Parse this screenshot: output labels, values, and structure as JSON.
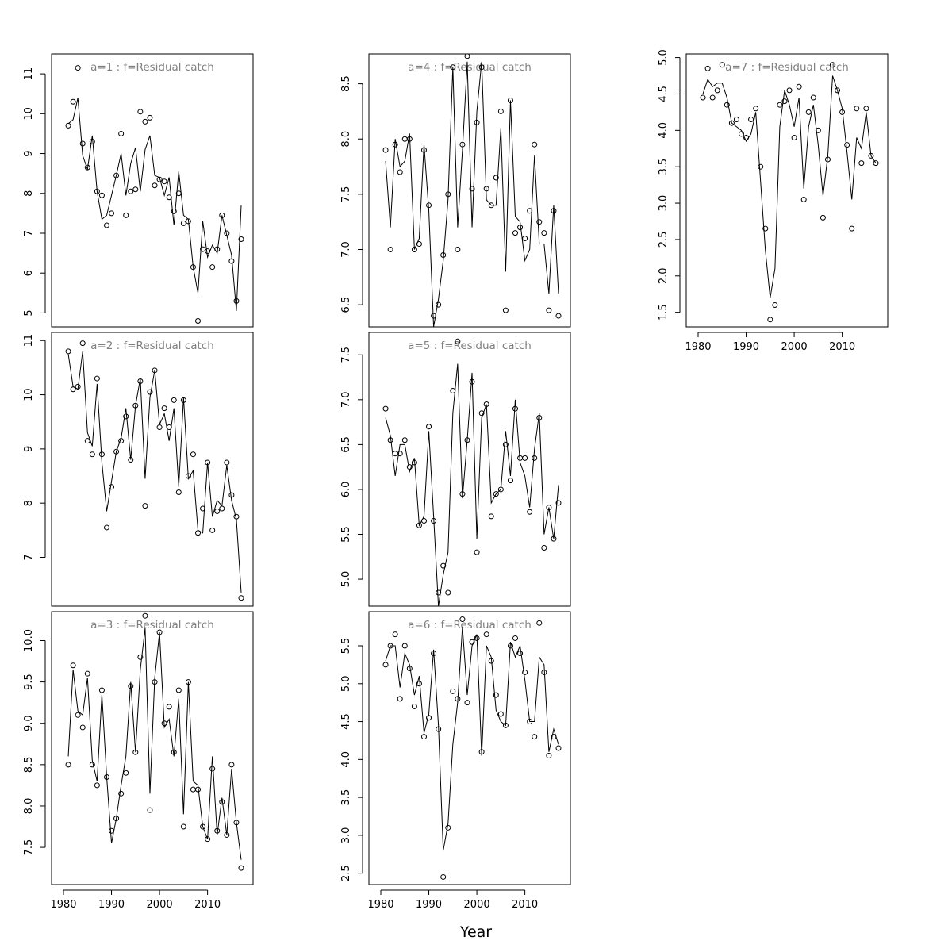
{
  "figure": {
    "xlabel": "Year"
  },
  "chart_data": [
    {
      "type": "scatter",
      "title": "a=1  :  f=Residual catch",
      "xlim": [
        1980,
        2017
      ],
      "ylim": [
        4.65,
        11.5
      ],
      "xticks": [
        1980,
        1990,
        2000,
        2010
      ],
      "yticks": [
        5,
        6,
        7,
        8,
        9,
        10,
        11
      ],
      "yticklabels": [
        "5",
        "6",
        "7",
        "8",
        "9",
        "10",
        "11"
      ],
      "show_xaxis": false,
      "series": [
        {
          "x": [
            1981,
            1982,
            1983,
            1984,
            1985,
            1986,
            1987,
            1988,
            1989,
            1990,
            1991,
            1992,
            1993,
            1994,
            1995,
            1996,
            1997,
            1998,
            1999,
            2000,
            2001,
            2002,
            2003,
            2004,
            2005,
            2006,
            2007,
            2008,
            2009,
            2010,
            2011,
            2012,
            2013,
            2014,
            2015,
            2016,
            2017
          ],
          "observed": [
            9.7,
            10.3,
            11.15,
            9.25,
            8.65,
            9.3,
            8.05,
            7.95,
            7.2,
            7.5,
            8.45,
            9.5,
            7.45,
            8.05,
            8.1,
            10.05,
            9.8,
            9.9,
            8.2,
            8.35,
            8.3,
            7.9,
            7.55,
            8.0,
            7.25,
            7.3,
            6.15,
            4.8,
            6.6,
            6.55,
            6.15,
            6.6,
            7.45,
            7.0,
            6.3,
            5.3,
            6.85
          ],
          "fitted": [
            9.75,
            9.85,
            10.4,
            8.95,
            8.6,
            9.45,
            8.05,
            7.35,
            7.45,
            7.95,
            8.45,
            9.0,
            7.95,
            8.75,
            9.15,
            8.05,
            9.1,
            9.45,
            8.45,
            8.4,
            7.95,
            8.4,
            7.2,
            8.55,
            7.45,
            7.35,
            6.15,
            5.5,
            7.3,
            6.4,
            6.7,
            6.5,
            7.45,
            6.95,
            6.45,
            5.05,
            7.7
          ]
        }
      ]
    },
    {
      "type": "scatter",
      "title": "a=2  :  f=Residual catch",
      "xlim": [
        1980,
        2017
      ],
      "ylim": [
        6.1,
        11.15
      ],
      "xticks": [
        1980,
        1990,
        2000,
        2010
      ],
      "yticks": [
        7,
        8,
        9,
        10,
        11
      ],
      "yticklabels": [
        "7",
        "8",
        "9",
        "10",
        "11"
      ],
      "show_xaxis": false,
      "series": [
        {
          "x": [
            1981,
            1982,
            1983,
            1984,
            1985,
            1986,
            1987,
            1988,
            1989,
            1990,
            1991,
            1992,
            1993,
            1994,
            1995,
            1996,
            1997,
            1998,
            1999,
            2000,
            2001,
            2002,
            2003,
            2004,
            2005,
            2006,
            2007,
            2008,
            2009,
            2010,
            2011,
            2012,
            2013,
            2014,
            2015,
            2016,
            2017
          ],
          "observed": [
            10.8,
            10.1,
            10.15,
            10.95,
            9.15,
            8.9,
            10.3,
            8.9,
            7.55,
            8.3,
            8.95,
            9.15,
            9.6,
            8.8,
            9.8,
            10.25,
            7.95,
            10.05,
            10.45,
            9.4,
            9.75,
            9.4,
            9.9,
            8.2,
            9.9,
            8.5,
            8.9,
            7.45,
            7.9,
            8.75,
            7.5,
            7.85,
            7.9,
            8.75,
            8.15,
            7.75,
            6.25
          ],
          "fitted": [
            10.75,
            10.15,
            10.1,
            10.8,
            9.3,
            9.05,
            10.2,
            8.75,
            7.85,
            8.4,
            8.95,
            9.2,
            9.75,
            8.8,
            9.8,
            10.3,
            8.45,
            9.95,
            10.45,
            9.45,
            9.65,
            9.15,
            9.75,
            8.3,
            9.95,
            8.45,
            8.6,
            7.5,
            7.45,
            8.75,
            7.75,
            8.05,
            7.95,
            8.7,
            8.05,
            7.7,
            6.35
          ]
        }
      ]
    },
    {
      "type": "scatter",
      "title": "a=3  :  f=Residual catch",
      "xlim": [
        1980,
        2017
      ],
      "ylim": [
        7.05,
        10.35
      ],
      "xticks": [
        1980,
        1990,
        2000,
        2010
      ],
      "yticks": [
        7.5,
        8.0,
        8.5,
        9.0,
        9.5,
        10.0
      ],
      "yticklabels": [
        "7.5",
        "8.0",
        "8.5",
        "9.0",
        "9.5",
        "10.0"
      ],
      "show_xaxis": true,
      "series": [
        {
          "x": [
            1981,
            1982,
            1983,
            1984,
            1985,
            1986,
            1987,
            1988,
            1989,
            1990,
            1991,
            1992,
            1993,
            1994,
            1995,
            1996,
            1997,
            1998,
            1999,
            2000,
            2001,
            2002,
            2003,
            2004,
            2005,
            2006,
            2007,
            2008,
            2009,
            2010,
            2011,
            2012,
            2013,
            2014,
            2015,
            2016,
            2017
          ],
          "observed": [
            8.5,
            9.7,
            9.1,
            8.95,
            9.6,
            8.5,
            8.25,
            9.4,
            8.35,
            7.7,
            7.85,
            8.15,
            8.4,
            9.45,
            8.65,
            9.8,
            10.3,
            7.95,
            9.5,
            10.1,
            9.0,
            9.2,
            8.65,
            9.4,
            7.75,
            9.5,
            8.2,
            8.2,
            7.75,
            7.6,
            8.45,
            7.7,
            8.05,
            7.65,
            8.5,
            7.8,
            7.25
          ],
          "fitted": [
            8.6,
            9.65,
            9.15,
            9.1,
            9.55,
            8.55,
            8.3,
            9.35,
            8.35,
            7.55,
            7.85,
            8.25,
            8.6,
            9.5,
            8.65,
            9.65,
            10.15,
            8.15,
            9.55,
            10.1,
            8.95,
            9.05,
            8.6,
            9.3,
            7.9,
            9.5,
            8.3,
            8.25,
            7.75,
            7.6,
            8.6,
            7.65,
            8.1,
            7.65,
            8.45,
            7.8,
            7.35
          ]
        }
      ]
    },
    {
      "type": "scatter",
      "title": "a=4  :  f=Residual catch",
      "xlim": [
        1980,
        2017
      ],
      "ylim": [
        6.3,
        8.77
      ],
      "xticks": [
        1980,
        1990,
        2000,
        2010
      ],
      "yticks": [
        6.5,
        7.0,
        7.5,
        8.0,
        8.5
      ],
      "yticklabels": [
        "6.5",
        "7.0",
        "7.5",
        "8.0",
        "8.5"
      ],
      "show_xaxis": false,
      "series": [
        {
          "x": [
            1981,
            1982,
            1983,
            1984,
            1985,
            1986,
            1987,
            1988,
            1989,
            1990,
            1991,
            1992,
            1993,
            1994,
            1995,
            1996,
            1997,
            1998,
            1999,
            2000,
            2001,
            2002,
            2003,
            2004,
            2005,
            2006,
            2007,
            2008,
            2009,
            2010,
            2011,
            2012,
            2013,
            2014,
            2015,
            2016,
            2017
          ],
          "observed": [
            7.9,
            7.0,
            7.95,
            7.7,
            8.0,
            8.0,
            7.0,
            7.05,
            7.9,
            7.4,
            6.4,
            6.5,
            6.95,
            7.5,
            8.65,
            7.0,
            7.95,
            8.75,
            7.55,
            8.15,
            8.65,
            7.55,
            7.4,
            7.65,
            8.25,
            6.45,
            8.35,
            7.15,
            7.2,
            7.1,
            7.35,
            7.95,
            7.25,
            7.15,
            6.45,
            7.35,
            6.4
          ],
          "fitted": [
            7.8,
            7.2,
            8.0,
            7.75,
            7.8,
            8.05,
            7.0,
            7.1,
            7.95,
            7.35,
            6.3,
            6.55,
            6.9,
            7.45,
            8.65,
            7.2,
            7.9,
            8.7,
            7.2,
            8.25,
            8.7,
            7.45,
            7.4,
            7.4,
            8.1,
            6.8,
            8.35,
            7.3,
            7.25,
            6.9,
            7.0,
            7.85,
            7.05,
            7.05,
            6.6,
            7.4,
            6.6
          ]
        }
      ]
    },
    {
      "type": "scatter",
      "title": "a=5  :  f=Residual catch",
      "xlim": [
        1980,
        2017
      ],
      "ylim": [
        4.7,
        7.75
      ],
      "xticks": [
        1980,
        1990,
        2000,
        2010
      ],
      "yticks": [
        5.0,
        5.5,
        6.0,
        6.5,
        7.0,
        7.5
      ],
      "yticklabels": [
        "5.0",
        "5.5",
        "6.0",
        "6.5",
        "7.0",
        "7.5"
      ],
      "show_xaxis": false,
      "series": [
        {
          "x": [
            1981,
            1982,
            1983,
            1984,
            1985,
            1986,
            1987,
            1988,
            1989,
            1990,
            1991,
            1992,
            1993,
            1994,
            1995,
            1996,
            1997,
            1998,
            1999,
            2000,
            2001,
            2002,
            2003,
            2004,
            2005,
            2006,
            2007,
            2008,
            2009,
            2010,
            2011,
            2012,
            2013,
            2014,
            2015,
            2016,
            2017
          ],
          "observed": [
            6.9,
            6.55,
            6.4,
            6.4,
            6.55,
            6.25,
            6.3,
            5.6,
            5.65,
            6.7,
            5.65,
            4.85,
            5.15,
            4.85,
            7.1,
            7.65,
            5.95,
            6.55,
            7.2,
            5.3,
            6.85,
            6.95,
            5.7,
            5.95,
            6.0,
            6.5,
            6.1,
            6.9,
            6.35,
            6.35,
            5.75,
            6.35,
            6.8,
            5.35,
            5.8,
            5.45,
            5.85
          ],
          "fitted": [
            6.8,
            6.6,
            6.15,
            6.5,
            6.5,
            6.2,
            6.35,
            5.6,
            5.7,
            6.65,
            5.7,
            4.7,
            5.05,
            5.3,
            6.85,
            7.4,
            5.9,
            6.55,
            7.3,
            5.45,
            6.8,
            6.95,
            5.85,
            5.95,
            6.0,
            6.65,
            6.15,
            7.0,
            6.3,
            6.15,
            5.8,
            6.45,
            6.85,
            5.5,
            5.8,
            5.45,
            6.05
          ]
        }
      ]
    },
    {
      "type": "scatter",
      "title": "a=6  :  f=Residual catch",
      "xlim": [
        1980,
        2017
      ],
      "ylim": [
        2.35,
        5.95
      ],
      "xticks": [
        1980,
        1990,
        2000,
        2010
      ],
      "yticks": [
        2.5,
        3.0,
        3.5,
        4.0,
        4.5,
        5.0,
        5.5
      ],
      "yticklabels": [
        "2.5",
        "3.0",
        "3.5",
        "4.0",
        "4.5",
        "5.0",
        "5.5"
      ],
      "show_xaxis": true,
      "series": [
        {
          "x": [
            1981,
            1982,
            1983,
            1984,
            1985,
            1986,
            1987,
            1988,
            1989,
            1990,
            1991,
            1992,
            1993,
            1994,
            1995,
            1996,
            1997,
            1998,
            1999,
            2000,
            2001,
            2002,
            2003,
            2004,
            2005,
            2006,
            2007,
            2008,
            2009,
            2010,
            2011,
            2012,
            2013,
            2014,
            2015,
            2016,
            2017
          ],
          "observed": [
            5.25,
            5.5,
            5.65,
            4.8,
            5.5,
            5.2,
            4.7,
            5.0,
            4.3,
            4.55,
            5.4,
            4.4,
            2.45,
            3.1,
            4.9,
            4.8,
            5.85,
            4.75,
            5.55,
            5.6,
            4.1,
            5.65,
            5.3,
            4.85,
            4.6,
            4.45,
            5.5,
            5.6,
            5.4,
            5.15,
            4.5,
            4.3,
            5.8,
            5.15,
            4.05,
            4.3,
            4.15
          ],
          "fitted": [
            5.3,
            5.5,
            5.5,
            4.95,
            5.4,
            5.25,
            4.85,
            5.1,
            4.35,
            4.6,
            5.45,
            4.45,
            2.8,
            3.15,
            4.2,
            4.75,
            5.75,
            4.85,
            5.5,
            5.65,
            4.05,
            5.5,
            5.35,
            4.65,
            4.5,
            4.45,
            5.55,
            5.35,
            5.5,
            5.05,
            4.5,
            4.5,
            5.35,
            5.25,
            4.1,
            4.4,
            4.2
          ]
        }
      ]
    },
    {
      "type": "scatter",
      "title": "a=7  :  f=Residual catch",
      "xlim": [
        1980,
        2017
      ],
      "ylim": [
        1.3,
        5.05
      ],
      "xticks": [
        1980,
        1990,
        2000,
        2010
      ],
      "yticks": [
        1.5,
        2.0,
        2.5,
        3.0,
        3.5,
        4.0,
        4.5,
        5.0
      ],
      "yticklabels": [
        "1.5",
        "2.0",
        "2.5",
        "3.0",
        "3.5",
        "4.0",
        "4.5",
        "5.0"
      ],
      "show_xaxis": true,
      "series": [
        {
          "x": [
            1981,
            1982,
            1983,
            1984,
            1985,
            1986,
            1987,
            1988,
            1989,
            1990,
            1991,
            1992,
            1993,
            1994,
            1995,
            1996,
            1997,
            1998,
            1999,
            2000,
            2001,
            2002,
            2003,
            2004,
            2005,
            2006,
            2007,
            2008,
            2009,
            2010,
            2011,
            2012,
            2013,
            2014,
            2015,
            2016,
            2017
          ],
          "observed": [
            4.45,
            4.85,
            4.45,
            4.55,
            4.9,
            4.35,
            4.1,
            4.15,
            3.95,
            3.9,
            4.15,
            4.3,
            3.5,
            2.65,
            1.4,
            1.6,
            4.35,
            4.4,
            4.55,
            3.9,
            4.6,
            3.05,
            4.25,
            4.45,
            4.0,
            2.8,
            3.6,
            4.9,
            4.55,
            4.25,
            3.8,
            2.65,
            4.3,
            3.55,
            4.3,
            3.65,
            3.55
          ],
          "fitted": [
            4.5,
            4.7,
            4.6,
            4.65,
            4.65,
            4.45,
            4.1,
            4.05,
            4.0,
            3.85,
            3.95,
            4.25,
            3.3,
            2.35,
            1.7,
            2.1,
            4.05,
            4.55,
            4.35,
            4.05,
            4.45,
            3.2,
            4.05,
            4.35,
            3.8,
            3.1,
            3.65,
            4.75,
            4.55,
            4.3,
            3.7,
            3.05,
            3.9,
            3.75,
            4.25,
            3.65,
            3.55
          ]
        }
      ]
    }
  ]
}
